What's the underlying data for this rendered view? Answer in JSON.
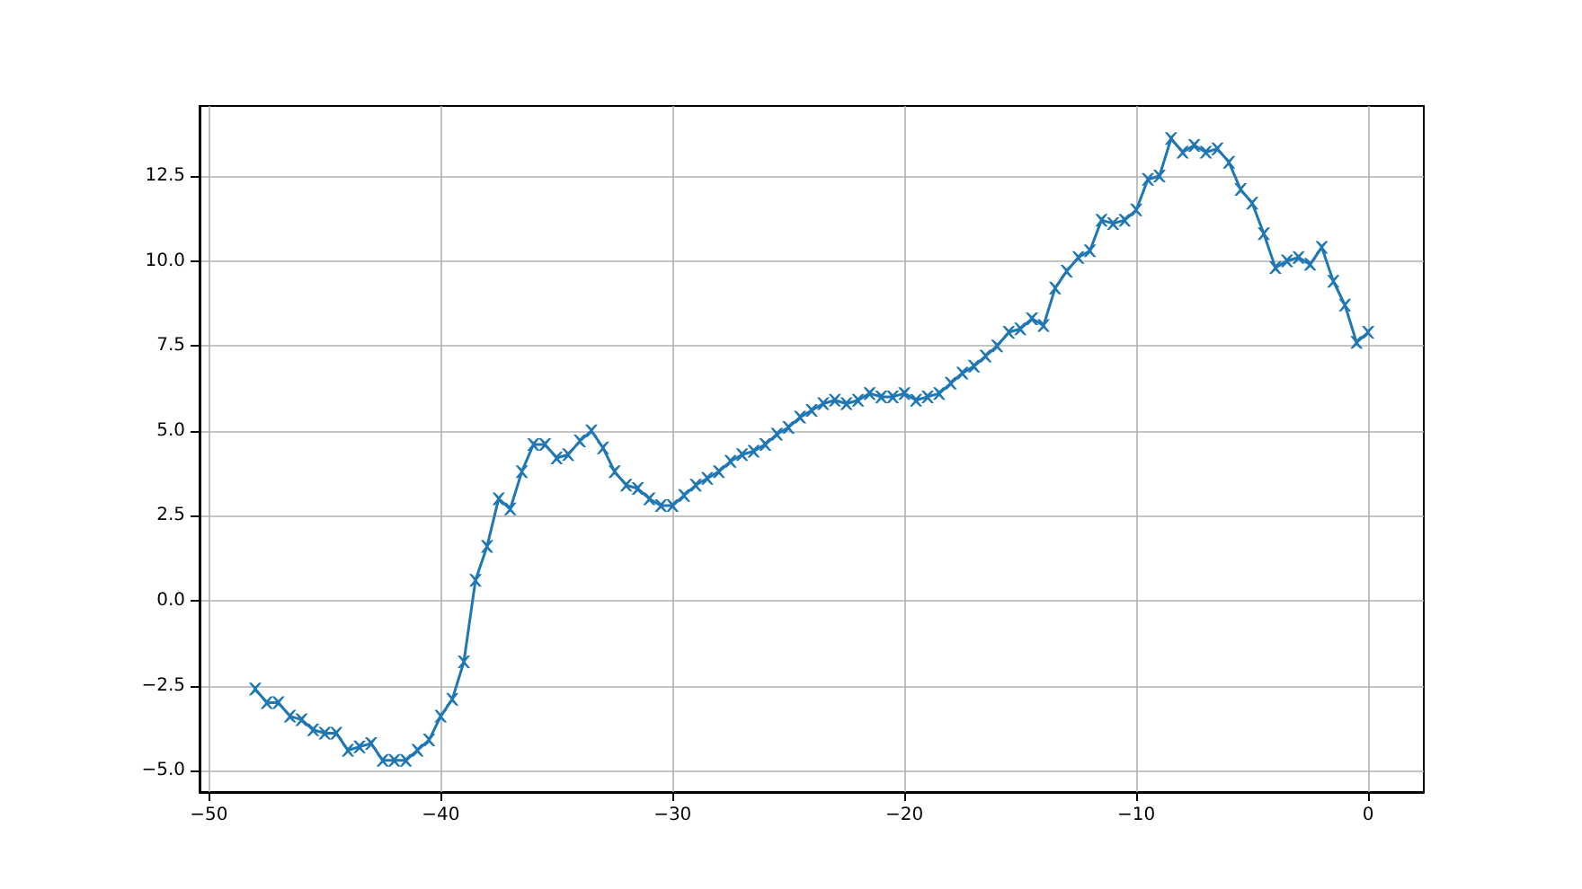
{
  "chart_data": {
    "type": "line",
    "marker": "cross",
    "grid": true,
    "line_style": "solid",
    "xlim": [
      -50.4,
      2.4
    ],
    "ylim": [
      -5.63,
      14.56
    ],
    "xticks": [
      {
        "value": -50,
        "label": "−50"
      },
      {
        "value": -40,
        "label": "−40"
      },
      {
        "value": -30,
        "label": "−30"
      },
      {
        "value": -20,
        "label": "−20"
      },
      {
        "value": -10,
        "label": "−10"
      },
      {
        "value": 0,
        "label": "0"
      }
    ],
    "yticks": [
      {
        "value": -5,
        "label": "−5.0"
      },
      {
        "value": -2.5,
        "label": "−2.5"
      },
      {
        "value": 0,
        "label": "0.0"
      },
      {
        "value": 2.5,
        "label": "2.5"
      },
      {
        "value": 5,
        "label": "5.0"
      },
      {
        "value": 7.5,
        "label": "7.5"
      },
      {
        "value": 10,
        "label": "10.0"
      },
      {
        "value": 12.5,
        "label": "12.5"
      }
    ],
    "x": [
      -48,
      -47.5,
      -47,
      -46.5,
      -46,
      -45.5,
      -45,
      -44.5,
      -44,
      -43.5,
      -43,
      -42.5,
      -42,
      -41.5,
      -41,
      -40.5,
      -40,
      -39.5,
      -39,
      -38.5,
      -38,
      -37.5,
      -37,
      -36.5,
      -36,
      -35.5,
      -35,
      -34.5,
      -34,
      -33.5,
      -33,
      -32.5,
      -32,
      -31.5,
      -31,
      -30.5,
      -30,
      -29.5,
      -29,
      -28.5,
      -28,
      -27.5,
      -27,
      -26.5,
      -26,
      -25.5,
      -25,
      -24.5,
      -24,
      -23.5,
      -23,
      -22.5,
      -22,
      -21.5,
      -21,
      -20.5,
      -20,
      -19.5,
      -19,
      -18.5,
      -18,
      -17.5,
      -17,
      -16.5,
      -16,
      -15.5,
      -15,
      -14.5,
      -14,
      -13.5,
      -13,
      -12.5,
      -12,
      -11.5,
      -11,
      -10.5,
      -10,
      -9.5,
      -9,
      -8.5,
      -8,
      -7.5,
      -7,
      -6.5,
      -6,
      -5.5,
      -5,
      -4.5,
      -4,
      -3.5,
      -3,
      -2.5,
      -2,
      -1.5,
      -1,
      -0.5,
      0
    ],
    "series": [
      {
        "color": "#1f77b4",
        "values": [
          -2.6,
          -3.0,
          -3.0,
          -3.4,
          -3.5,
          -3.8,
          -3.9,
          -3.9,
          -4.4,
          -4.3,
          -4.2,
          -4.7,
          -4.7,
          -4.7,
          -4.4,
          -4.1,
          -3.4,
          -2.9,
          -1.8,
          0.6,
          1.6,
          3.0,
          2.7,
          3.8,
          4.6,
          4.6,
          4.2,
          4.3,
          4.7,
          5.0,
          4.5,
          3.8,
          3.4,
          3.3,
          3.0,
          2.8,
          2.8,
          3.1,
          3.4,
          3.6,
          3.8,
          4.1,
          4.3,
          4.4,
          4.6,
          4.9,
          5.1,
          5.4,
          5.6,
          5.8,
          5.9,
          5.8,
          5.9,
          6.1,
          6.0,
          6.0,
          6.1,
          5.9,
          6.0,
          6.1,
          6.4,
          6.7,
          6.9,
          7.2,
          7.5,
          7.9,
          8.0,
          8.3,
          8.1,
          9.2,
          9.7,
          10.1,
          10.3,
          11.2,
          11.1,
          11.2,
          11.5,
          12.4,
          12.5,
          13.6,
          13.2,
          13.4,
          13.2,
          13.3,
          12.9,
          12.1,
          11.7,
          10.8,
          9.8,
          10.0,
          10.1,
          9.9,
          10.4,
          9.4,
          8.7,
          7.6,
          7.9
        ]
      }
    ]
  }
}
